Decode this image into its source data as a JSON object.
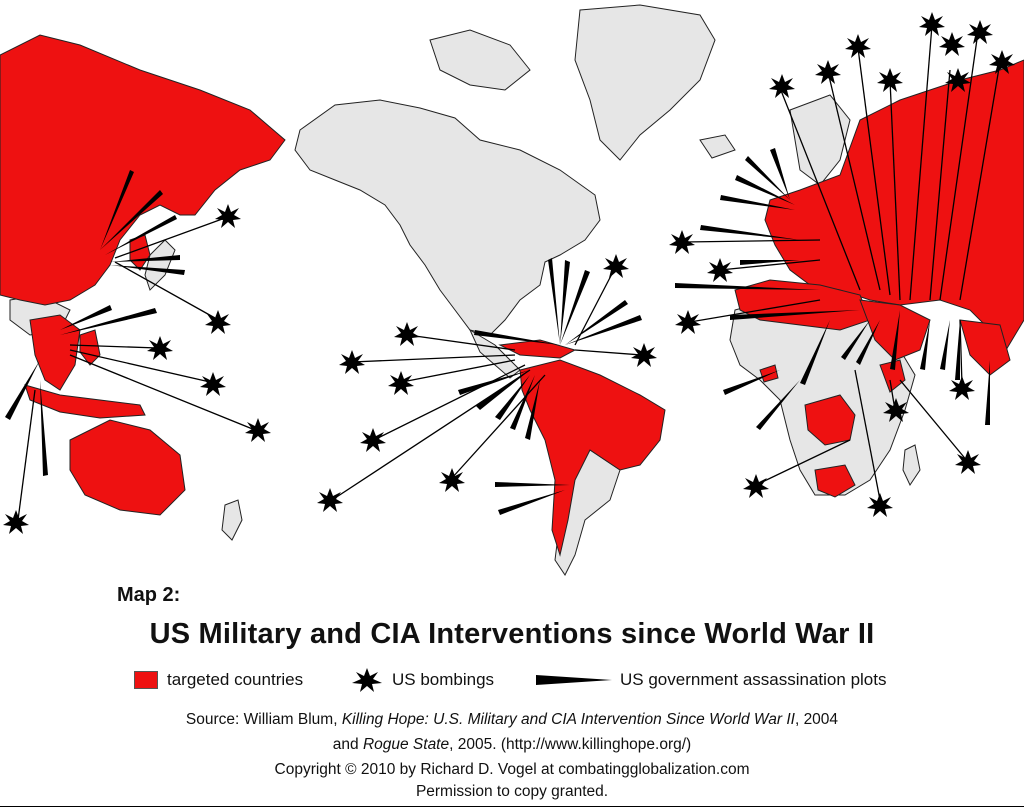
{
  "map": {
    "colors": {
      "targeted": "#ee1111",
      "land": "#e6e6e6",
      "border": "#222222",
      "ocean": "#ffffff",
      "marker": "#000000"
    },
    "label": "Map 2:",
    "title": "US Military and CIA Interventions since World War II"
  },
  "legend": {
    "targeted_label": "targeted countries",
    "bombing_label": "US bombings",
    "assassination_label": "US government assassination plots"
  },
  "source": {
    "prefix": "Source:  William Blum, ",
    "book1": "Killing Hope: U.S. Military and CIA Intervention Since World War II",
    "year1": ", 2004",
    "and": "and ",
    "book2": "Rogue State",
    "year2": ", 2005. (http://www.killinghope.org/)",
    "copyright": "Copyright  ©  2010 by Richard D. Vogel at combatingglobalization.com",
    "permission": "Permission to copy granted."
  }
}
